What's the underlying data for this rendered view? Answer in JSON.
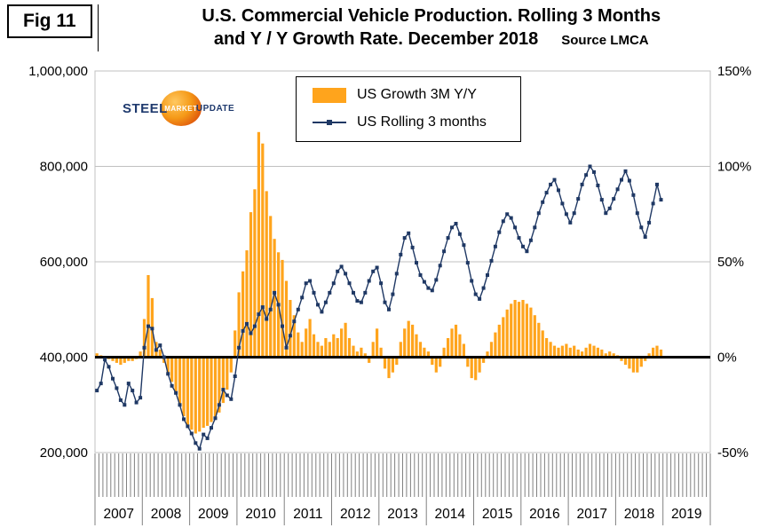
{
  "figure": {
    "fig_label": "Fig 11",
    "title_line1": "U.S. Commercial Vehicle Production. Rolling 3 Months",
    "title_line2": "and Y / Y Growth Rate. December 2018",
    "source": "Source LMCA"
  },
  "logo": {
    "word1": "STEEL",
    "word2": "MARKET",
    "word3": "UPDATE"
  },
  "legend": {
    "bar_label": "US Growth 3M Y/Y",
    "line_label": "US Rolling 3 months"
  },
  "chart_data": {
    "type": "combo",
    "title": "U.S. Commercial Vehicle Production. Rolling 3 Months and Y / Y Growth Rate. December 2018",
    "source": "LMCA",
    "left_axis": {
      "min": 200000,
      "max": 1000000,
      "tick_values": [
        1000000,
        800000,
        600000,
        400000,
        200000
      ],
      "label_ticks": [
        "1,000,000",
        "800,000",
        "600,000",
        "400,000",
        "200,000"
      ]
    },
    "right_axis": {
      "min": -50,
      "max": 150,
      "tick_values": [
        150,
        100,
        50,
        0,
        -50
      ],
      "label_ticks": [
        "150%",
        "100%",
        "50%",
        "0%",
        "-50%"
      ]
    },
    "baseline_left_value": 400000,
    "x_years": [
      2007,
      2008,
      2009,
      2010,
      2011,
      2012,
      2013,
      2014,
      2015,
      2016,
      2017,
      2018,
      2019
    ],
    "start_month": "2007-01",
    "end_month": "2018-12",
    "colors": {
      "bar": "#FFA41C",
      "line": "#1f3864",
      "zero_line": "#000000",
      "grid": "#c0c0c0"
    },
    "series": [
      {
        "name": "US Growth 3M Y/Y",
        "type": "bar",
        "axis": "right",
        "unit": "%",
        "color": "#FFA41C",
        "values": [
          2,
          1,
          0,
          -1,
          -2,
          -3,
          -4,
          -3,
          -2,
          -2,
          -1,
          3,
          20,
          43,
          31,
          8,
          4,
          -3,
          -8,
          -13,
          -18,
          -25,
          -31,
          -36,
          -38,
          -40,
          -39,
          -37,
          -36,
          -34,
          -32,
          -29,
          -24,
          -17,
          -8,
          14,
          34,
          45,
          56,
          76,
          88,
          118,
          112,
          87,
          74,
          62,
          55,
          51,
          40,
          30,
          22,
          13,
          8,
          15,
          20,
          12,
          8,
          6,
          10,
          8,
          12,
          10,
          15,
          18,
          10,
          6,
          3,
          5,
          2,
          -3,
          8,
          15,
          5,
          -6,
          -11,
          -8,
          -4,
          8,
          15,
          19,
          17,
          12,
          8,
          5,
          3,
          -4,
          -8,
          -5,
          5,
          10,
          15,
          17,
          12,
          7,
          -5,
          -11,
          -12,
          -8,
          -3,
          3,
          8,
          13,
          17,
          21,
          25,
          28,
          30,
          29,
          30,
          28,
          26,
          22,
          18,
          14,
          10,
          8,
          6,
          5,
          6,
          7,
          5,
          6,
          4,
          3,
          5,
          7,
          6,
          5,
          4,
          2,
          3,
          2,
          1,
          -2,
          -4,
          -6,
          -8,
          -8,
          -5,
          -2,
          2,
          5,
          6,
          4
        ]
      },
      {
        "name": "US Rolling 3 months",
        "type": "line",
        "axis": "left",
        "unit": "units",
        "color": "#1f3864",
        "values": [
          330000,
          345000,
          395000,
          380000,
          355000,
          335000,
          310000,
          300000,
          345000,
          330000,
          305000,
          315000,
          420000,
          465000,
          460000,
          415000,
          425000,
          400000,
          365000,
          340000,
          325000,
          300000,
          270000,
          255000,
          240000,
          220000,
          208000,
          238000,
          230000,
          252000,
          272000,
          300000,
          332000,
          320000,
          312000,
          360000,
          420000,
          455000,
          470000,
          450000,
          465000,
          490000,
          505000,
          480000,
          500000,
          535000,
          510000,
          465000,
          420000,
          445000,
          475000,
          500000,
          525000,
          555000,
          560000,
          535000,
          510000,
          495000,
          515000,
          535000,
          555000,
          580000,
          590000,
          575000,
          555000,
          535000,
          518000,
          515000,
          535000,
          560000,
          580000,
          588000,
          555000,
          515000,
          500000,
          532000,
          575000,
          615000,
          650000,
          660000,
          630000,
          598000,
          572000,
          558000,
          545000,
          540000,
          562000,
          592000,
          622000,
          650000,
          672000,
          680000,
          658000,
          635000,
          598000,
          560000,
          532000,
          522000,
          545000,
          572000,
          602000,
          632000,
          662000,
          685000,
          700000,
          692000,
          672000,
          650000,
          632000,
          622000,
          645000,
          672000,
          702000,
          725000,
          745000,
          762000,
          772000,
          750000,
          722000,
          700000,
          682000,
          702000,
          732000,
          762000,
          782000,
          800000,
          788000,
          760000,
          730000,
          702000,
          712000,
          732000,
          752000,
          772000,
          790000,
          770000,
          740000,
          702000,
          672000,
          652000,
          682000,
          722000,
          762000,
          730000
        ]
      }
    ]
  }
}
